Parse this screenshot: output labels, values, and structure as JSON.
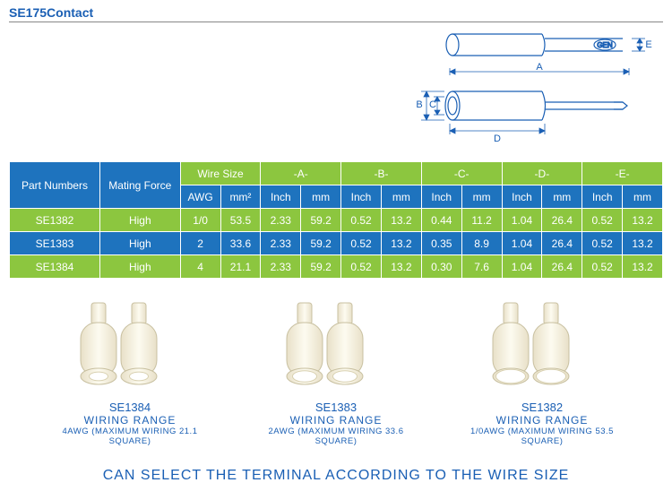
{
  "title": "SE175Contact",
  "diagram": {
    "stroke_color": "#1a5fb4",
    "labels": {
      "A": "A",
      "B": "B",
      "C": "C",
      "D": "D",
      "E": "E",
      "gen": "GEN"
    }
  },
  "table": {
    "header_colors": {
      "blue": "#1e73be",
      "green": "#8cc63f"
    },
    "row_colors": {
      "odd": "#8cc63f",
      "even": "#1e73be"
    },
    "text_color": "#ffffff",
    "headers": {
      "part": "Part Numbers",
      "mating": "Mating Force",
      "wire": "Wire Size",
      "A": "-A-",
      "B": "-B-",
      "C": "-C-",
      "D": "-D-",
      "E": "-E-",
      "awg": "AWG",
      "mm2": "mm²",
      "inch": "Inch",
      "mm": "mm"
    },
    "rows": [
      {
        "part": "SE1382",
        "mating": "High",
        "awg": "1/0",
        "mm2": "53.5",
        "A_in": "2.33",
        "A_mm": "59.2",
        "B_in": "0.52",
        "B_mm": "13.2",
        "C_in": "0.44",
        "C_mm": "11.2",
        "D_in": "1.04",
        "D_mm": "26.4",
        "E_in": "0.52",
        "E_mm": "13.2"
      },
      {
        "part": "SE1383",
        "mating": "High",
        "awg": "2",
        "mm2": "33.6",
        "A_in": "2.33",
        "A_mm": "59.2",
        "B_in": "0.52",
        "B_mm": "13.2",
        "C_in": "0.35",
        "C_mm": "8.9",
        "D_in": "1.04",
        "D_mm": "26.4",
        "E_in": "0.52",
        "E_mm": "13.2"
      },
      {
        "part": "SE1384",
        "mating": "High",
        "awg": "4",
        "mm2": "21.1",
        "A_in": "2.33",
        "A_mm": "59.2",
        "B_in": "0.52",
        "B_mm": "13.2",
        "C_in": "0.30",
        "C_mm": "7.6",
        "D_in": "1.04",
        "D_mm": "26.4",
        "E_in": "0.52",
        "E_mm": "13.2"
      }
    ]
  },
  "products": [
    {
      "name": "SE1384",
      "sub1": "WIRING RANGE",
      "sub2": "4AWG (MAXIMUM WIRING 21.1 SQUARE)",
      "bore": 14
    },
    {
      "name": "SE1383",
      "sub1": "WIRING RANGE",
      "sub2": "2AWG (MAXIMUM WIRING 33.6 SQUARE)",
      "bore": 18
    },
    {
      "name": "SE1382",
      "sub1": "WIRING RANGE",
      "sub2": "1/0AWG (MAXIMUM WIRING 53.5 SQUARE)",
      "bore": 22
    }
  ],
  "product_style": {
    "body_fill": "#f5f0e0",
    "body_stroke": "#c8c0a0",
    "bore_fill": "#ffffff",
    "bore_stroke": "#d8d0b0",
    "label_color": "#1a5fb4"
  },
  "footer": "CAN SELECT THE TERMINAL ACCORDING TO THE WIRE SIZE"
}
